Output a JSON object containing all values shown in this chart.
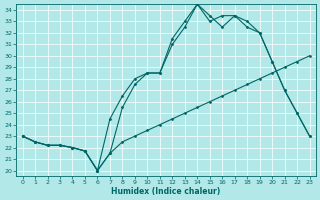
{
  "xlabel": "Humidex (Indice chaleur)",
  "bg_color": "#b3e8e8",
  "line_color": "#006666",
  "grid_color": "#ffffff",
  "xlim": [
    -0.5,
    23.5
  ],
  "ylim": [
    19.5,
    34.5
  ],
  "xticks": [
    0,
    1,
    2,
    3,
    4,
    5,
    6,
    7,
    8,
    9,
    10,
    11,
    12,
    13,
    14,
    15,
    16,
    17,
    18,
    19,
    20,
    21,
    22,
    23
  ],
  "yticks": [
    20,
    21,
    22,
    23,
    24,
    25,
    26,
    27,
    28,
    29,
    30,
    31,
    32,
    33,
    34
  ],
  "line1_x": [
    0,
    1,
    2,
    3,
    4,
    5,
    6,
    7,
    8,
    9,
    10,
    11,
    12,
    13,
    14,
    15,
    16,
    17,
    18,
    19,
    20,
    21,
    22,
    23
  ],
  "line1_y": [
    23.0,
    22.5,
    22.2,
    22.2,
    22.0,
    21.7,
    20.0,
    21.5,
    22.5,
    23.0,
    23.5,
    24.0,
    24.5,
    25.0,
    25.5,
    26.0,
    26.5,
    27.0,
    27.5,
    28.0,
    28.5,
    29.0,
    29.5,
    30.0
  ],
  "line2_x": [
    0,
    1,
    2,
    3,
    4,
    5,
    6,
    7,
    8,
    9,
    10,
    11,
    12,
    13,
    14,
    15,
    16,
    17,
    18,
    19,
    20,
    21,
    22,
    23
  ],
  "line2_y": [
    23.0,
    22.5,
    22.2,
    22.2,
    22.0,
    21.7,
    20.0,
    21.5,
    25.5,
    27.5,
    28.5,
    28.5,
    31.0,
    32.5,
    34.5,
    33.5,
    32.5,
    33.5,
    33.0,
    32.0,
    29.5,
    27.0,
    25.0,
    23.0
  ],
  "line3_x": [
    0,
    1,
    2,
    3,
    4,
    5,
    6,
    7,
    8,
    9,
    10,
    11,
    12,
    13,
    14,
    15,
    16,
    17,
    18,
    19,
    20,
    21,
    22,
    23
  ],
  "line3_y": [
    23.0,
    22.5,
    22.2,
    22.2,
    22.0,
    21.7,
    20.0,
    24.5,
    26.5,
    28.0,
    28.5,
    28.5,
    31.5,
    33.0,
    34.5,
    33.0,
    33.5,
    33.5,
    32.5,
    32.0,
    29.5,
    27.0,
    25.0,
    23.0
  ]
}
